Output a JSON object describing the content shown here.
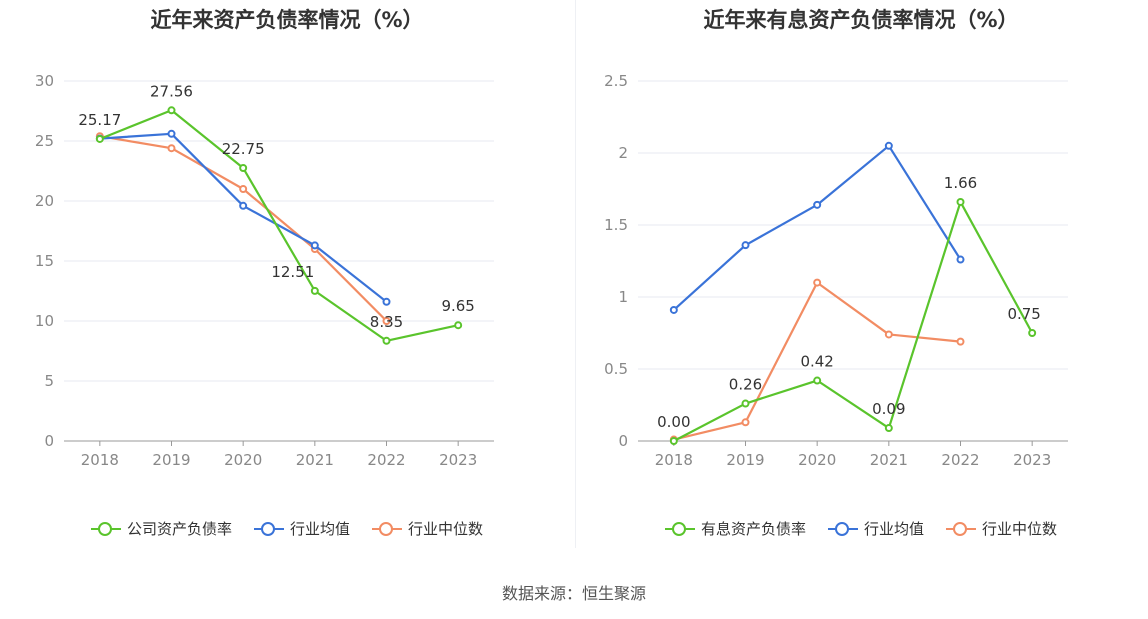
{
  "colors": {
    "green": "#5ac42c",
    "blue": "#3a73d8",
    "orange": "#f28c63",
    "grid": "#e7eaf1",
    "axis": "#999999",
    "tick": "#888888",
    "label": "#333333"
  },
  "source": "数据来源：恒生聚源",
  "chart_data": [
    {
      "type": "line",
      "title": "近年来资产负债率情况（%）",
      "categories": [
        "2018",
        "2019",
        "2020",
        "2021",
        "2022",
        "2023"
      ],
      "ylim": [
        0,
        30
      ],
      "yticks": [
        "0",
        "5",
        "10",
        "15",
        "20",
        "25",
        "30"
      ],
      "grid": true,
      "legend_position": "bottom",
      "series": [
        {
          "name": "公司资产负债率",
          "color": "#5ac42c",
          "values": [
            25.17,
            27.56,
            22.75,
            12.51,
            8.35,
            9.65
          ],
          "labels": [
            "25.17",
            "27.56",
            "22.75",
            "12.51",
            "8.35",
            "9.65"
          ]
        },
        {
          "name": "行业均值",
          "color": "#3a73d8",
          "values": [
            25.2,
            25.6,
            19.6,
            16.3,
            11.6,
            null
          ]
        },
        {
          "name": "行业中位数",
          "color": "#f28c63",
          "values": [
            25.4,
            24.4,
            21.0,
            16.0,
            10.0,
            null
          ]
        }
      ]
    },
    {
      "type": "line",
      "title": "近年来有息资产负债率情况（%）",
      "categories": [
        "2018",
        "2019",
        "2020",
        "2021",
        "2022",
        "2023"
      ],
      "ylim": [
        0,
        2.5
      ],
      "yticks": [
        "0",
        "0.5",
        "1",
        "1.5",
        "2",
        "2.5"
      ],
      "grid": true,
      "legend_position": "bottom",
      "series": [
        {
          "name": "有息资产负债率",
          "color": "#5ac42c",
          "values": [
            0.0,
            0.26,
            0.42,
            0.09,
            1.66,
            0.75
          ],
          "labels": [
            "0.00",
            "0.26",
            "0.42",
            "0.09",
            "1.66",
            "0.75"
          ]
        },
        {
          "name": "行业均值",
          "color": "#3a73d8",
          "values": [
            0.91,
            1.36,
            1.64,
            2.05,
            1.26,
            null
          ]
        },
        {
          "name": "行业中位数",
          "color": "#f28c63",
          "values": [
            0.01,
            0.13,
            1.1,
            0.74,
            0.69,
            null
          ]
        }
      ]
    }
  ]
}
